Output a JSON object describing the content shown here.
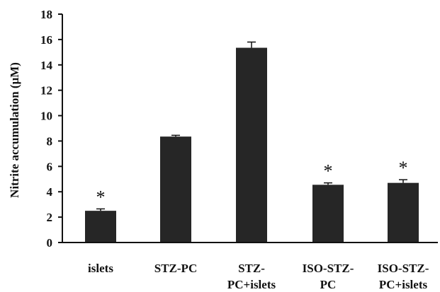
{
  "chart_data": {
    "type": "bar",
    "title": "",
    "xlabel": "",
    "ylabel": "Nitrite accumulation (μM)",
    "ylim": [
      0,
      18
    ],
    "yticks": [
      "0",
      "2",
      "4",
      "6",
      "8",
      "10",
      "12",
      "14",
      "16",
      "18"
    ],
    "categories": [
      [
        "islets"
      ],
      [
        "STZ-PC"
      ],
      [
        "STZ-",
        "PC+islets"
      ],
      [
        "ISO-STZ-",
        "PC"
      ],
      [
        "ISO-STZ-",
        "PC+islets"
      ]
    ],
    "values": [
      2.5,
      8.35,
      15.35,
      4.55,
      4.7
    ],
    "errors": [
      0.15,
      0.1,
      0.45,
      0.15,
      0.25
    ],
    "significance": [
      "*",
      "",
      "",
      "*",
      "*"
    ],
    "bar_color": "#262626",
    "grid": false,
    "legend": "none"
  }
}
